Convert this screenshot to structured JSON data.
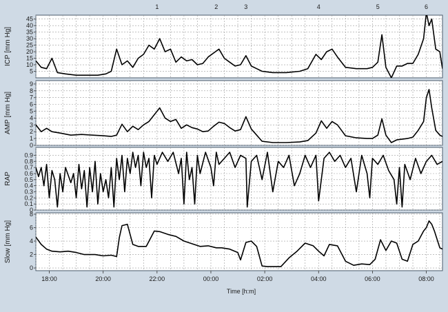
{
  "chart_data": {
    "type": "line",
    "xlabel": "Time [h:m]",
    "x_ticks": [
      "18:00",
      "20:00",
      "22:00",
      "00:00",
      "02:00",
      "04:00",
      "06:00",
      "08:00"
    ],
    "x_range_hours": [
      17.5,
      32.6
    ],
    "event_markers": [
      {
        "label": "1",
        "time_h": 22.0
      },
      {
        "label": "2",
        "time_h": 24.2
      },
      {
        "label": "3",
        "time_h": 25.3
      },
      {
        "label": "4",
        "time_h": 28.0
      },
      {
        "label": "5",
        "time_h": 30.2
      },
      {
        "label": "6",
        "time_h": 32.0
      }
    ],
    "grid": true,
    "series": [
      {
        "name": "ICP",
        "ylabel": "ICP [mm Hg]",
        "ylim": [
          0,
          48
        ],
        "yticks": [
          "5",
          "10",
          "15",
          "20",
          "25",
          "30",
          "35",
          "40",
          "45"
        ],
        "ytick_values": [
          5,
          10,
          15,
          20,
          25,
          30,
          35,
          40,
          45
        ],
        "x": [
          17.5,
          17.7,
          17.9,
          18.1,
          18.3,
          18.6,
          19.0,
          19.4,
          19.8,
          20.1,
          20.3,
          20.5,
          20.7,
          20.9,
          21.1,
          21.3,
          21.5,
          21.7,
          21.9,
          22.1,
          22.3,
          22.5,
          22.7,
          22.9,
          23.1,
          23.3,
          23.5,
          23.7,
          23.9,
          24.1,
          24.3,
          24.5,
          24.7,
          24.9,
          25.1,
          25.3,
          25.5,
          25.7,
          25.9,
          26.3,
          26.8,
          27.3,
          27.6,
          27.9,
          28.1,
          28.3,
          28.5,
          28.7,
          29.0,
          29.4,
          29.8,
          30.0,
          30.2,
          30.35,
          30.5,
          30.7,
          30.9,
          31.1,
          31.3,
          31.5,
          31.7,
          31.9,
          32.0,
          32.1,
          32.2,
          32.35,
          32.5,
          32.6
        ],
        "y": [
          13,
          8,
          7,
          15,
          4,
          3,
          2,
          2,
          2,
          3,
          5,
          22,
          10,
          13,
          8,
          15,
          18,
          25,
          22,
          30,
          20,
          22,
          12,
          16,
          13,
          14,
          10,
          11,
          16,
          19,
          22,
          15,
          12,
          9,
          10,
          17,
          9,
          7,
          5,
          4,
          4,
          5,
          7,
          18,
          14,
          20,
          22,
          16,
          8,
          7,
          7,
          8,
          12,
          33,
          8,
          0,
          9,
          9,
          11,
          11,
          18,
          30,
          50,
          40,
          45,
          22,
          20,
          7
        ]
      },
      {
        "name": "AMP",
        "ylabel": "AMP [mm Hg]",
        "ylim": [
          0,
          9.5
        ],
        "yticks": [
          "0",
          "1",
          "2",
          "3",
          "4",
          "5",
          "6",
          "7",
          "8",
          "9"
        ],
        "ytick_values": [
          0,
          1,
          2,
          3,
          4,
          5,
          6,
          7,
          8,
          9
        ],
        "x": [
          17.5,
          17.7,
          17.9,
          18.1,
          18.4,
          18.8,
          19.2,
          19.6,
          20.0,
          20.3,
          20.5,
          20.7,
          20.9,
          21.1,
          21.3,
          21.5,
          21.7,
          21.9,
          22.1,
          22.3,
          22.5,
          22.7,
          22.9,
          23.1,
          23.3,
          23.5,
          23.7,
          23.9,
          24.1,
          24.3,
          24.5,
          24.7,
          24.9,
          25.1,
          25.3,
          25.5,
          25.7,
          25.9,
          26.3,
          26.8,
          27.3,
          27.6,
          27.9,
          28.1,
          28.3,
          28.5,
          28.7,
          29.0,
          29.4,
          29.8,
          30.0,
          30.2,
          30.35,
          30.5,
          30.7,
          30.9,
          31.1,
          31.3,
          31.5,
          31.7,
          31.9,
          32.0,
          32.1,
          32.2,
          32.35,
          32.5,
          32.6
        ],
        "y": [
          3,
          2,
          2.5,
          2,
          1.8,
          1.5,
          1.6,
          1.5,
          1.4,
          1.3,
          1.5,
          3.1,
          2,
          2.8,
          2.3,
          3,
          3.5,
          4.5,
          5.5,
          4,
          3.5,
          3.8,
          2.5,
          3,
          2.6,
          2.4,
          2,
          2.1,
          2.8,
          3.4,
          3.2,
          2.6,
          2.1,
          2.3,
          4.2,
          2.4,
          1.5,
          0.6,
          0.4,
          0.4,
          0.5,
          0.7,
          1.8,
          3.6,
          2.5,
          3.5,
          3,
          1.4,
          1.1,
          1,
          1,
          1.5,
          3.9,
          1.5,
          0.4,
          0.8,
          0.9,
          1,
          1.2,
          2.2,
          3.5,
          7,
          8.2,
          5.5,
          2.2,
          1.5,
          1.3
        ]
      },
      {
        "name": "RAP",
        "ylabel": "RAP",
        "ylim": [
          0,
          1.03
        ],
        "yticks": [
          "0",
          "0.1",
          "0.2",
          "0.3",
          "0.4",
          "0.5",
          "0.6",
          "0.7",
          "0.8",
          "0.9"
        ],
        "ytick_values": [
          0,
          0.1,
          0.2,
          0.3,
          0.4,
          0.5,
          0.6,
          0.7,
          0.8,
          0.9
        ],
        "x": [
          17.5,
          17.6,
          17.7,
          17.8,
          17.9,
          18.0,
          18.1,
          18.2,
          18.3,
          18.4,
          18.5,
          18.6,
          18.8,
          18.9,
          19.0,
          19.1,
          19.2,
          19.3,
          19.4,
          19.5,
          19.6,
          19.7,
          19.8,
          19.9,
          20.0,
          20.1,
          20.2,
          20.3,
          20.4,
          20.5,
          20.6,
          20.7,
          20.8,
          20.9,
          21.0,
          21.1,
          21.2,
          21.3,
          21.4,
          21.5,
          21.6,
          21.7,
          21.8,
          21.9,
          22.0,
          22.2,
          22.4,
          22.6,
          22.8,
          22.9,
          23.0,
          23.1,
          23.2,
          23.3,
          23.4,
          23.5,
          23.6,
          23.8,
          24.0,
          24.1,
          24.2,
          24.3,
          24.5,
          24.7,
          24.9,
          25.1,
          25.3,
          25.35,
          25.5,
          25.7,
          25.9,
          26.1,
          26.3,
          26.5,
          26.7,
          26.9,
          27.1,
          27.3,
          27.5,
          27.7,
          27.9,
          28.0,
          28.2,
          28.4,
          28.6,
          28.8,
          29.0,
          29.2,
          29.4,
          29.6,
          29.8,
          29.9,
          30.0,
          30.2,
          30.4,
          30.6,
          30.8,
          30.9,
          31.0,
          31.1,
          31.2,
          31.4,
          31.6,
          31.8,
          32.0,
          32.2,
          32.4,
          32.6
        ],
        "y": [
          0.7,
          0.55,
          0.7,
          0.4,
          0.75,
          0.2,
          0.65,
          0.5,
          0.05,
          0.6,
          0.3,
          0.7,
          0.45,
          0.6,
          0.2,
          0.75,
          0.35,
          0.65,
          0.05,
          0.7,
          0.3,
          0.8,
          0.1,
          0.6,
          0.3,
          0.5,
          0.2,
          0.7,
          0.05,
          0.85,
          0.5,
          0.9,
          0.3,
          0.85,
          0.6,
          0.95,
          0.7,
          0.9,
          0.4,
          0.95,
          0.7,
          0.85,
          0.2,
          0.9,
          0.75,
          0.95,
          0.8,
          0.95,
          0.6,
          0.85,
          0.1,
          0.95,
          0.5,
          0.7,
          0.1,
          0.9,
          0.6,
          0.95,
          0.7,
          0.4,
          0.95,
          0.75,
          0.85,
          0.95,
          0.7,
          0.9,
          0.85,
          0.05,
          0.8,
          0.9,
          0.5,
          0.95,
          0.3,
          0.8,
          0.7,
          0.9,
          0.4,
          0.6,
          0.9,
          0.7,
          0.9,
          0.15,
          0.85,
          0.95,
          0.8,
          0.9,
          0.7,
          0.85,
          0.3,
          0.9,
          0.6,
          0.2,
          0.85,
          0.75,
          0.9,
          0.65,
          0.5,
          0.1,
          0.7,
          0.05,
          0.75,
          0.5,
          0.85,
          0.6,
          0.8,
          0.9,
          0.75,
          0.8
        ]
      },
      {
        "name": "Slow",
        "ylabel": "Slow [mm Hg]",
        "ylim": [
          -0.4,
          8.2
        ],
        "yticks": [
          "0",
          "2",
          "4",
          "6",
          "8"
        ],
        "ytick_values": [
          0,
          2,
          4,
          6,
          8
        ],
        "x": [
          17.5,
          17.7,
          17.9,
          18.1,
          18.4,
          18.7,
          19.0,
          19.3,
          19.7,
          20.0,
          20.3,
          20.5,
          20.6,
          20.7,
          20.9,
          21.1,
          21.3,
          21.6,
          21.9,
          22.1,
          22.4,
          22.7,
          23.0,
          23.3,
          23.6,
          23.9,
          24.2,
          24.4,
          24.7,
          25.0,
          25.1,
          25.3,
          25.5,
          25.7,
          25.9,
          26.1,
          26.3,
          26.6,
          26.9,
          27.2,
          27.5,
          27.8,
          28.0,
          28.2,
          28.4,
          28.7,
          29.0,
          29.3,
          29.6,
          29.9,
          30.1,
          30.3,
          30.5,
          30.7,
          30.9,
          31.1,
          31.3,
          31.5,
          31.7,
          31.9,
          32.0,
          32.1,
          32.2,
          32.3,
          32.5,
          32.6
        ],
        "y": [
          4.6,
          3.5,
          2.8,
          2.5,
          2.4,
          2.5,
          2.3,
          2.0,
          2.0,
          1.8,
          1.9,
          1.7,
          4.5,
          6.3,
          6.5,
          3.5,
          3.2,
          3.2,
          5.5,
          5.4,
          5.0,
          4.7,
          4.0,
          3.6,
          3.2,
          3.3,
          3.0,
          3.0,
          2.8,
          2.3,
          1.2,
          3.8,
          4.0,
          3.2,
          0.3,
          0.2,
          0.2,
          0.2,
          1.5,
          2.5,
          3.7,
          3.3,
          2.5,
          1.8,
          3.5,
          3.3,
          1.0,
          0.4,
          0.6,
          0.5,
          1.3,
          4.2,
          2.6,
          4.0,
          3.7,
          1.3,
          1.0,
          3.5,
          4.0,
          5.5,
          6.0,
          7.0,
          6.5,
          5.5,
          3.0,
          2.8
        ]
      }
    ]
  }
}
